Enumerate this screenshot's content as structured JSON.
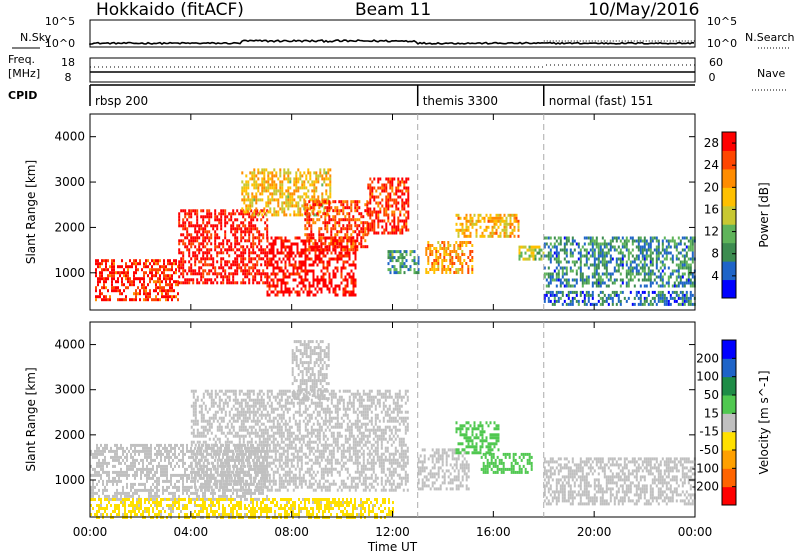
{
  "header": {
    "station": "Hokkaido (fitACF)",
    "beam": "Beam 11",
    "date": "10/May/2016"
  },
  "small_panels": {
    "nsky_label": "N.Sky",
    "nsearch_label": "N.Search",
    "freq_label_1": "Freq.",
    "freq_label_2": "[MHz]",
    "nave_label": "Nave",
    "cpid_label": "CPID",
    "nsky_ticks": [
      "10^5",
      "10^0"
    ],
    "nsearch_ticks": [
      "10^5",
      "10^0"
    ],
    "freq_ticks": [
      "18",
      "8"
    ],
    "nave_ticks": [
      "60",
      "0"
    ]
  },
  "modes": [
    {
      "label": "rbsp 200",
      "start_hour": 0
    },
    {
      "label": "themis 3300",
      "start_hour": 13
    },
    {
      "label": "normal (fast) 151",
      "start_hour": 18
    }
  ],
  "x_axis": {
    "label": "Time UT",
    "ticks": [
      "00:00",
      "04:00",
      "08:00",
      "12:00",
      "16:00",
      "20:00",
      "00:00"
    ],
    "range_hours": [
      0,
      24
    ]
  },
  "chart_data": [
    {
      "type": "heatmap",
      "title": "",
      "ylabel": "Slant Range [km]",
      "xlabel": "",
      "ylim": [
        180,
        4500
      ],
      "yticks": [
        "1000",
        "2000",
        "3000",
        "4000"
      ],
      "colorbar": {
        "label": "Power [dB]",
        "ticks": [
          "4",
          "8",
          "12",
          "16",
          "20",
          "24",
          "28"
        ],
        "range": [
          0,
          30
        ],
        "colors": [
          "#0000ff",
          "#1e64c8",
          "#3c8c50",
          "#5fb45a",
          "#c8c832",
          "#ffc000",
          "#ff8c00",
          "#ff4600",
          "#ff0000"
        ]
      },
      "regions": [
        {
          "x": [
            0.2,
            3.5
          ],
          "y": [
            400,
            1300
          ],
          "value": 27
        },
        {
          "x": [
            3.5,
            7.0
          ],
          "y": [
            800,
            2400
          ],
          "value": 29
        },
        {
          "x": [
            7.0,
            10.5
          ],
          "y": [
            500,
            1800
          ],
          "value": 30
        },
        {
          "x": [
            6.0,
            9.5
          ],
          "y": [
            2300,
            3300
          ],
          "value": 18
        },
        {
          "x": [
            8.5,
            11.0
          ],
          "y": [
            1500,
            2600
          ],
          "value": 26
        },
        {
          "x": [
            11.0,
            12.6
          ],
          "y": [
            1900,
            3100
          ],
          "value": 27
        },
        {
          "x": [
            13.3,
            15.2
          ],
          "y": [
            1000,
            1700
          ],
          "value": 21
        },
        {
          "x": [
            14.5,
            17.0
          ],
          "y": [
            1800,
            2300
          ],
          "value": 19
        },
        {
          "x": [
            17.0,
            18.0
          ],
          "y": [
            1300,
            1600
          ],
          "value": 14
        },
        {
          "x": [
            18.0,
            24.0
          ],
          "y": [
            700,
            1800
          ],
          "value": 8
        },
        {
          "x": [
            18.0,
            24.0
          ],
          "y": [
            300,
            600
          ],
          "value": 6
        },
        {
          "x": [
            11.8,
            13.0
          ],
          "y": [
            1000,
            1500
          ],
          "value": 9
        }
      ]
    },
    {
      "type": "heatmap",
      "title": "",
      "ylabel": "Slant Range [km]",
      "xlabel": "Time UT",
      "ylim": [
        180,
        4500
      ],
      "yticks": [
        "1000",
        "2000",
        "3000",
        "4000"
      ],
      "colorbar": {
        "label": "Velocity [m s^-1]",
        "ticks": [
          "200",
          "100",
          "50",
          "15",
          "-15",
          "-50",
          "-100",
          "-200"
        ],
        "range": [
          -250,
          250
        ],
        "colors": [
          "#ff0000",
          "#ff6400",
          "#ffa000",
          "#ffe000",
          "#c0c0c0",
          "#50c850",
          "#1e8c46",
          "#1e64c8",
          "#0000ff"
        ]
      },
      "regions": [
        {
          "x": [
            0.0,
            7.0
          ],
          "y": [
            600,
            1800
          ],
          "value": 0
        },
        {
          "x": [
            4.0,
            12.6
          ],
          "y": [
            800,
            3000
          ],
          "value": 0
        },
        {
          "x": [
            8.0,
            9.5
          ],
          "y": [
            2800,
            4100
          ],
          "value": 0
        },
        {
          "x": [
            13.0,
            15.0
          ],
          "y": [
            800,
            1700
          ],
          "value": 0
        },
        {
          "x": [
            14.5,
            16.2
          ],
          "y": [
            1600,
            2300
          ],
          "value": 60
        },
        {
          "x": [
            15.5,
            17.5
          ],
          "y": [
            1200,
            1600
          ],
          "value": 55
        },
        {
          "x": [
            18.0,
            24.0
          ],
          "y": [
            500,
            1500
          ],
          "value": 0
        },
        {
          "x": [
            0.0,
            12.0
          ],
          "y": [
            200,
            600
          ],
          "value": -40
        }
      ]
    }
  ]
}
